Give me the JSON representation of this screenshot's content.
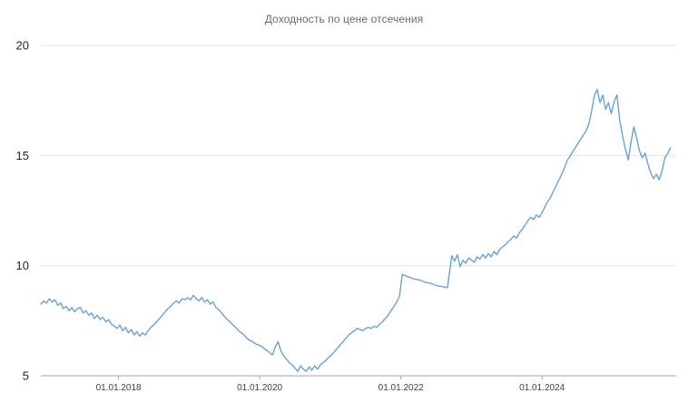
{
  "page": {
    "background": "#ffffff"
  },
  "chart_data": {
    "type": "line",
    "title": "Доходность по цене отсечения",
    "xlabel": "",
    "ylabel": "",
    "xlim": [
      2016.9,
      2025.9
    ],
    "ylim": [
      5,
      20
    ],
    "grid": "horizontal",
    "legend": "none",
    "y_ticks": [
      {
        "value": 5,
        "label": "5"
      },
      {
        "value": 10,
        "label": "10"
      },
      {
        "value": 15,
        "label": "15"
      },
      {
        "value": 20,
        "label": "20"
      }
    ],
    "x_ticks": [
      {
        "value": 2018.0,
        "label": "01.01.2018"
      },
      {
        "value": 2020.0,
        "label": "01.01.2020"
      },
      {
        "value": 2022.0,
        "label": "01.01.2022"
      },
      {
        "value": 2024.0,
        "label": "01.01.2024"
      }
    ],
    "colors": {
      "line": "#6aa1d8",
      "grid": "#e3e3e3",
      "axis": "#a6a6a6",
      "tick_label": "#262626",
      "x_tick_label": "#404040",
      "title": "#6b6b6b",
      "background": "#ffffff"
    },
    "series": [
      {
        "name": "Доходность по цене отсечения",
        "points": [
          [
            2016.9,
            8.25
          ],
          [
            2016.94,
            8.4
          ],
          [
            2016.98,
            8.3
          ],
          [
            2017.02,
            8.5
          ],
          [
            2017.06,
            8.35
          ],
          [
            2017.1,
            8.45
          ],
          [
            2017.14,
            8.2
          ],
          [
            2017.18,
            8.3
          ],
          [
            2017.22,
            8.05
          ],
          [
            2017.26,
            8.15
          ],
          [
            2017.3,
            7.95
          ],
          [
            2017.34,
            8.1
          ],
          [
            2017.38,
            7.9
          ],
          [
            2017.42,
            8.05
          ],
          [
            2017.46,
            8.1
          ],
          [
            2017.5,
            7.85
          ],
          [
            2017.54,
            7.95
          ],
          [
            2017.58,
            7.75
          ],
          [
            2017.62,
            7.85
          ],
          [
            2017.66,
            7.6
          ],
          [
            2017.7,
            7.75
          ],
          [
            2017.74,
            7.55
          ],
          [
            2017.78,
            7.65
          ],
          [
            2017.82,
            7.45
          ],
          [
            2017.86,
            7.55
          ],
          [
            2017.9,
            7.35
          ],
          [
            2017.94,
            7.25
          ],
          [
            2017.98,
            7.15
          ],
          [
            2018.02,
            7.3
          ],
          [
            2018.06,
            7.05
          ],
          [
            2018.1,
            7.2
          ],
          [
            2018.14,
            6.95
          ],
          [
            2018.18,
            7.1
          ],
          [
            2018.22,
            6.85
          ],
          [
            2018.26,
            7.0
          ],
          [
            2018.3,
            6.8
          ],
          [
            2018.34,
            6.95
          ],
          [
            2018.38,
            6.85
          ],
          [
            2018.42,
            7.05
          ],
          [
            2018.46,
            7.2
          ],
          [
            2018.5,
            7.3
          ],
          [
            2018.54,
            7.45
          ],
          [
            2018.58,
            7.6
          ],
          [
            2018.62,
            7.75
          ],
          [
            2018.66,
            7.9
          ],
          [
            2018.7,
            8.05
          ],
          [
            2018.74,
            8.15
          ],
          [
            2018.78,
            8.3
          ],
          [
            2018.82,
            8.4
          ],
          [
            2018.86,
            8.3
          ],
          [
            2018.9,
            8.5
          ],
          [
            2018.94,
            8.45
          ],
          [
            2018.98,
            8.55
          ],
          [
            2019.02,
            8.45
          ],
          [
            2019.06,
            8.65
          ],
          [
            2019.1,
            8.5
          ],
          [
            2019.14,
            8.4
          ],
          [
            2019.18,
            8.55
          ],
          [
            2019.22,
            8.35
          ],
          [
            2019.26,
            8.45
          ],
          [
            2019.3,
            8.25
          ],
          [
            2019.34,
            8.35
          ],
          [
            2019.38,
            8.1
          ],
          [
            2019.42,
            8.0
          ],
          [
            2019.46,
            7.85
          ],
          [
            2019.5,
            7.7
          ],
          [
            2019.54,
            7.55
          ],
          [
            2019.58,
            7.45
          ],
          [
            2019.62,
            7.3
          ],
          [
            2019.66,
            7.2
          ],
          [
            2019.7,
            7.05
          ],
          [
            2019.74,
            6.95
          ],
          [
            2019.78,
            6.85
          ],
          [
            2019.82,
            6.7
          ],
          [
            2019.86,
            6.6
          ],
          [
            2019.9,
            6.55
          ],
          [
            2019.94,
            6.45
          ],
          [
            2019.98,
            6.4
          ],
          [
            2020.02,
            6.35
          ],
          [
            2020.06,
            6.25
          ],
          [
            2020.1,
            6.15
          ],
          [
            2020.14,
            6.05
          ],
          [
            2020.18,
            5.95
          ],
          [
            2020.22,
            6.3
          ],
          [
            2020.26,
            6.55
          ],
          [
            2020.3,
            6.15
          ],
          [
            2020.34,
            5.9
          ],
          [
            2020.38,
            5.75
          ],
          [
            2020.42,
            5.6
          ],
          [
            2020.46,
            5.5
          ],
          [
            2020.5,
            5.35
          ],
          [
            2020.54,
            5.2
          ],
          [
            2020.58,
            5.45
          ],
          [
            2020.62,
            5.3
          ],
          [
            2020.66,
            5.2
          ],
          [
            2020.7,
            5.4
          ],
          [
            2020.74,
            5.25
          ],
          [
            2020.78,
            5.45
          ],
          [
            2020.82,
            5.3
          ],
          [
            2020.86,
            5.5
          ],
          [
            2020.9,
            5.6
          ],
          [
            2020.94,
            5.7
          ],
          [
            2020.98,
            5.85
          ],
          [
            2021.02,
            5.95
          ],
          [
            2021.06,
            6.1
          ],
          [
            2021.1,
            6.25
          ],
          [
            2021.14,
            6.4
          ],
          [
            2021.18,
            6.55
          ],
          [
            2021.22,
            6.7
          ],
          [
            2021.26,
            6.85
          ],
          [
            2021.3,
            6.95
          ],
          [
            2021.34,
            7.05
          ],
          [
            2021.38,
            7.15
          ],
          [
            2021.42,
            7.1
          ],
          [
            2021.46,
            7.05
          ],
          [
            2021.5,
            7.15
          ],
          [
            2021.54,
            7.2
          ],
          [
            2021.58,
            7.15
          ],
          [
            2021.62,
            7.25
          ],
          [
            2021.66,
            7.2
          ],
          [
            2021.7,
            7.35
          ],
          [
            2021.74,
            7.45
          ],
          [
            2021.78,
            7.6
          ],
          [
            2021.82,
            7.75
          ],
          [
            2021.86,
            7.95
          ],
          [
            2021.9,
            8.15
          ],
          [
            2021.94,
            8.35
          ],
          [
            2021.98,
            8.6
          ],
          [
            2022.02,
            9.6
          ],
          [
            2022.1,
            9.5
          ],
          [
            2022.18,
            9.4
          ],
          [
            2022.26,
            9.35
          ],
          [
            2022.34,
            9.25
          ],
          [
            2022.42,
            9.2
          ],
          [
            2022.5,
            9.1
          ],
          [
            2022.58,
            9.05
          ],
          [
            2022.66,
            9.0
          ],
          [
            2022.72,
            10.45
          ],
          [
            2022.76,
            10.2
          ],
          [
            2022.8,
            10.5
          ],
          [
            2022.84,
            9.95
          ],
          [
            2022.88,
            10.25
          ],
          [
            2022.92,
            10.1
          ],
          [
            2022.96,
            10.35
          ],
          [
            2023.0,
            10.25
          ],
          [
            2023.04,
            10.15
          ],
          [
            2023.08,
            10.4
          ],
          [
            2023.12,
            10.3
          ],
          [
            2023.16,
            10.5
          ],
          [
            2023.2,
            10.35
          ],
          [
            2023.24,
            10.55
          ],
          [
            2023.28,
            10.4
          ],
          [
            2023.32,
            10.65
          ],
          [
            2023.36,
            10.5
          ],
          [
            2023.4,
            10.75
          ],
          [
            2023.44,
            10.85
          ],
          [
            2023.48,
            10.95
          ],
          [
            2023.52,
            11.1
          ],
          [
            2023.56,
            11.2
          ],
          [
            2023.6,
            11.35
          ],
          [
            2023.64,
            11.25
          ],
          [
            2023.68,
            11.5
          ],
          [
            2023.72,
            11.65
          ],
          [
            2023.76,
            11.85
          ],
          [
            2023.8,
            12.05
          ],
          [
            2023.84,
            12.2
          ],
          [
            2023.88,
            12.1
          ],
          [
            2023.92,
            12.3
          ],
          [
            2023.96,
            12.2
          ],
          [
            2024.0,
            12.4
          ],
          [
            2024.06,
            12.8
          ],
          [
            2024.12,
            13.1
          ],
          [
            2024.18,
            13.5
          ],
          [
            2024.24,
            13.9
          ],
          [
            2024.3,
            14.3
          ],
          [
            2024.36,
            14.8
          ],
          [
            2024.42,
            15.1
          ],
          [
            2024.48,
            15.4
          ],
          [
            2024.54,
            15.7
          ],
          [
            2024.58,
            15.9
          ],
          [
            2024.62,
            16.1
          ],
          [
            2024.66,
            16.4
          ],
          [
            2024.7,
            17.0
          ],
          [
            2024.74,
            17.7
          ],
          [
            2024.78,
            18.0
          ],
          [
            2024.82,
            17.4
          ],
          [
            2024.86,
            17.75
          ],
          [
            2024.9,
            17.1
          ],
          [
            2024.94,
            17.4
          ],
          [
            2024.98,
            16.9
          ],
          [
            2025.02,
            17.45
          ],
          [
            2025.06,
            17.75
          ],
          [
            2025.1,
            16.6
          ],
          [
            2025.14,
            15.9
          ],
          [
            2025.18,
            15.3
          ],
          [
            2025.22,
            14.8
          ],
          [
            2025.26,
            15.6
          ],
          [
            2025.3,
            16.3
          ],
          [
            2025.34,
            15.8
          ],
          [
            2025.38,
            15.2
          ],
          [
            2025.42,
            14.9
          ],
          [
            2025.46,
            15.1
          ],
          [
            2025.5,
            14.6
          ],
          [
            2025.54,
            14.2
          ],
          [
            2025.58,
            13.95
          ],
          [
            2025.62,
            14.15
          ],
          [
            2025.66,
            13.9
          ],
          [
            2025.7,
            14.3
          ],
          [
            2025.74,
            14.9
          ],
          [
            2025.78,
            15.1
          ],
          [
            2025.82,
            15.35
          ]
        ]
      }
    ]
  }
}
